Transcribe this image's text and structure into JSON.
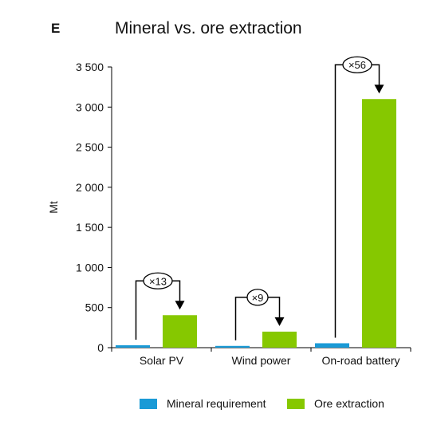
{
  "panel_letter": "E",
  "colors": {
    "mineral": "#1a9ad6",
    "ore": "#86c800",
    "axis": "#000000"
  },
  "chart_data": {
    "type": "bar",
    "title": "Mineral vs. ore extraction",
    "xlabel": "",
    "ylabel": "Mt",
    "ylim": [
      0,
      3500
    ],
    "yticks": [
      0,
      500,
      1000,
      1500,
      2000,
      2500,
      3000,
      3500
    ],
    "ytick_labels": [
      "0",
      "500",
      "1 000",
      "1 500",
      "2 000",
      "2 500",
      "3 000",
      "3 500"
    ],
    "categories": [
      "Solar PV",
      "Wind power",
      "On-road battery"
    ],
    "series": [
      {
        "name": "Mineral requirement",
        "values": [
          30,
          22,
          55
        ]
      },
      {
        "name": "Ore extraction",
        "values": [
          405,
          200,
          3100
        ]
      }
    ],
    "annotations": [
      "×13",
      "×9",
      "×56"
    ],
    "legend_position": "bottom"
  }
}
